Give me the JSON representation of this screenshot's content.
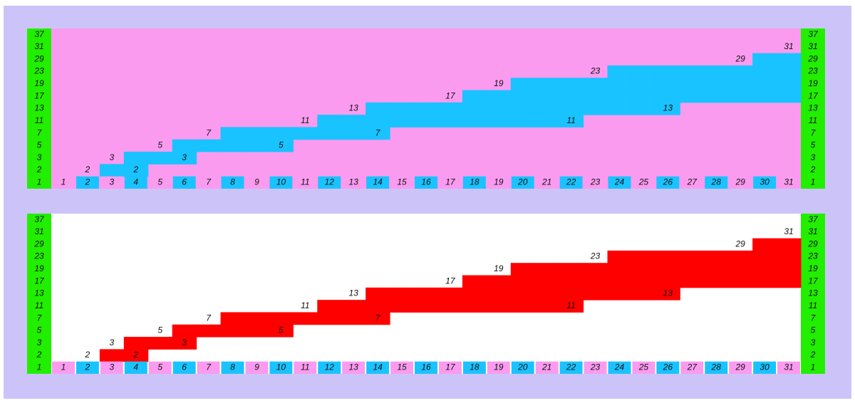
{
  "grid": {
    "row_labels": [
      37,
      31,
      29,
      23,
      19,
      17,
      13,
      11,
      7,
      5,
      3,
      2,
      1
    ],
    "column_labels": [
      1,
      2,
      3,
      4,
      5,
      6,
      7,
      8,
      9,
      10,
      11,
      12,
      13,
      14,
      15,
      16,
      17,
      18,
      19,
      20,
      21,
      22,
      23,
      24,
      25,
      26,
      27,
      28,
      29,
      30,
      31
    ],
    "band": [
      [],
      [],
      [
        2
      ],
      [
        2,
        3
      ],
      [
        3
      ],
      [
        3,
        5
      ],
      [
        5
      ],
      [
        5,
        7
      ],
      [
        5,
        7
      ],
      [
        5,
        7
      ],
      [
        7
      ],
      [
        7,
        11
      ],
      [
        7,
        11
      ],
      [
        7,
        11,
        13
      ],
      [
        11,
        13
      ],
      [
        11,
        13
      ],
      [
        11,
        13
      ],
      [
        11,
        13,
        17
      ],
      [
        11,
        13,
        17
      ],
      [
        11,
        13,
        17,
        19
      ],
      [
        11,
        13,
        17,
        19
      ],
      [
        11,
        13,
        17,
        19
      ],
      [
        13,
        17,
        19
      ],
      [
        13,
        17,
        19,
        23
      ],
      [
        13,
        17,
        19,
        23
      ],
      [
        13,
        17,
        19,
        23
      ],
      [
        17,
        19,
        23
      ],
      [
        17,
        19,
        23
      ],
      [
        17,
        19,
        23
      ],
      [
        17,
        19,
        23,
        29
      ],
      [
        17,
        19,
        23,
        29
      ]
    ],
    "labels": [
      {
        "column": 2,
        "row": 2
      },
      {
        "column": 3,
        "row": 3
      },
      {
        "column": 5,
        "row": 5
      },
      {
        "column": 7,
        "row": 7
      },
      {
        "column": 11,
        "row": 11
      },
      {
        "column": 13,
        "row": 13
      },
      {
        "column": 17,
        "row": 17
      },
      {
        "column": 19,
        "row": 19
      },
      {
        "column": 23,
        "row": 23
      },
      {
        "column": 29,
        "row": 29
      },
      {
        "column": 31,
        "row": 31
      },
      {
        "column": 4,
        "row": 2
      },
      {
        "column": 6,
        "row": 3
      },
      {
        "column": 10,
        "row": 5
      },
      {
        "column": 14,
        "row": 7
      },
      {
        "column": 22,
        "row": 11
      },
      {
        "column": 26,
        "row": 13
      }
    ]
  },
  "panels": [
    {
      "background": "#fa9bf0",
      "band_color": "#19c3ff"
    },
    {
      "background": "#ffffff",
      "band_color": "#ff0000"
    }
  ],
  "colors": {
    "frame": "#ccc4f8",
    "side": "#22ee00",
    "even": "#19c3ff",
    "odd": "#fa9bf0"
  }
}
